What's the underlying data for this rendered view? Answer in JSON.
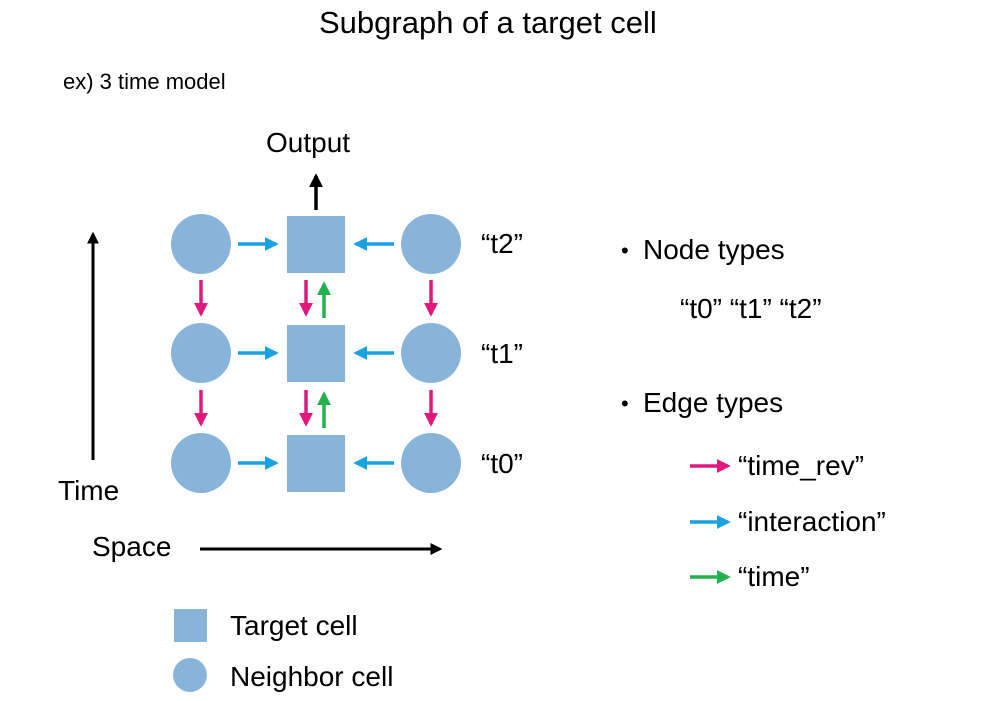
{
  "title": "Subgraph of a target cell",
  "subtitle": "ex) 3 time model",
  "diagram": {
    "output_label": "Output",
    "time_axis_label": "Time",
    "space_axis_label": "Space",
    "time_labels": [
      "“t2”",
      "“t1”",
      "“t0”"
    ],
    "legend": {
      "target_cell": "Target cell",
      "neighbor_cell": "Neighbor cell"
    }
  },
  "side_panel": {
    "bullet": "•",
    "node_types_heading": "Node types",
    "node_types": "“t0” “t1” “t2”",
    "edge_types_heading": "Edge types",
    "edge_types": [
      {
        "label": "“time_rev”",
        "color": "#e2187e"
      },
      {
        "label": "“interaction”",
        "color": "#1aa2e0"
      },
      {
        "label": "“time”",
        "color": "#22b14c"
      }
    ]
  },
  "colors": {
    "node_fill": "#89b4d9",
    "time_rev": "#e2187e",
    "interaction": "#1aa2e0",
    "time": "#22b14c",
    "axis": "#000000"
  }
}
